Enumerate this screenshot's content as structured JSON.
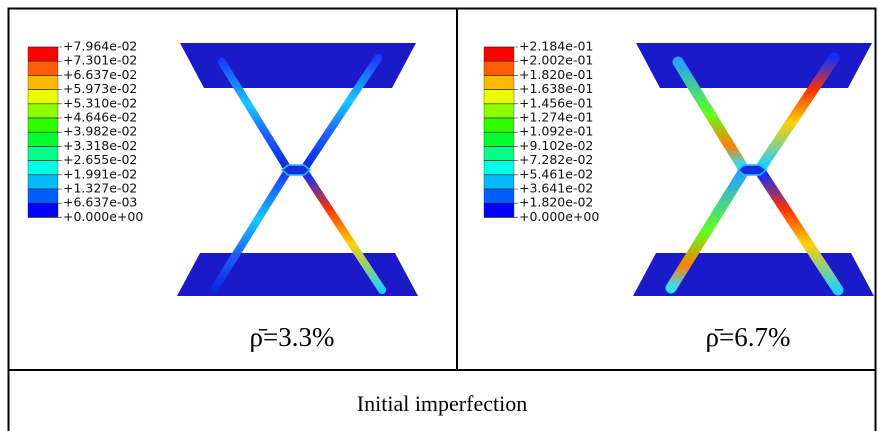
{
  "panels": [
    {
      "legend": [
        "+7.964e-02",
        "+7.301e-02",
        "+6.637e-02",
        "+5.973e-02",
        "+5.310e-02",
        "+4.646e-02",
        "+3.982e-02",
        "+3.318e-02",
        "+2.655e-02",
        "+1.991e-02",
        "+1.327e-02",
        "+6.637e-03",
        "+0.000e+00"
      ],
      "caption": "ρ̄=3.3%"
    },
    {
      "legend": [
        "+2.184e-01",
        "+2.002e-01",
        "+1.820e-01",
        "+1.638e-01",
        "+1.456e-01",
        "+1.274e-01",
        "+1.092e-01",
        "+9.102e-02",
        "+7.282e-02",
        "+5.461e-02",
        "+3.641e-02",
        "+1.820e-02",
        "+0.000e+00"
      ],
      "caption": "ρ̄=6.7%"
    }
  ],
  "footer": "Initial imperfection"
}
